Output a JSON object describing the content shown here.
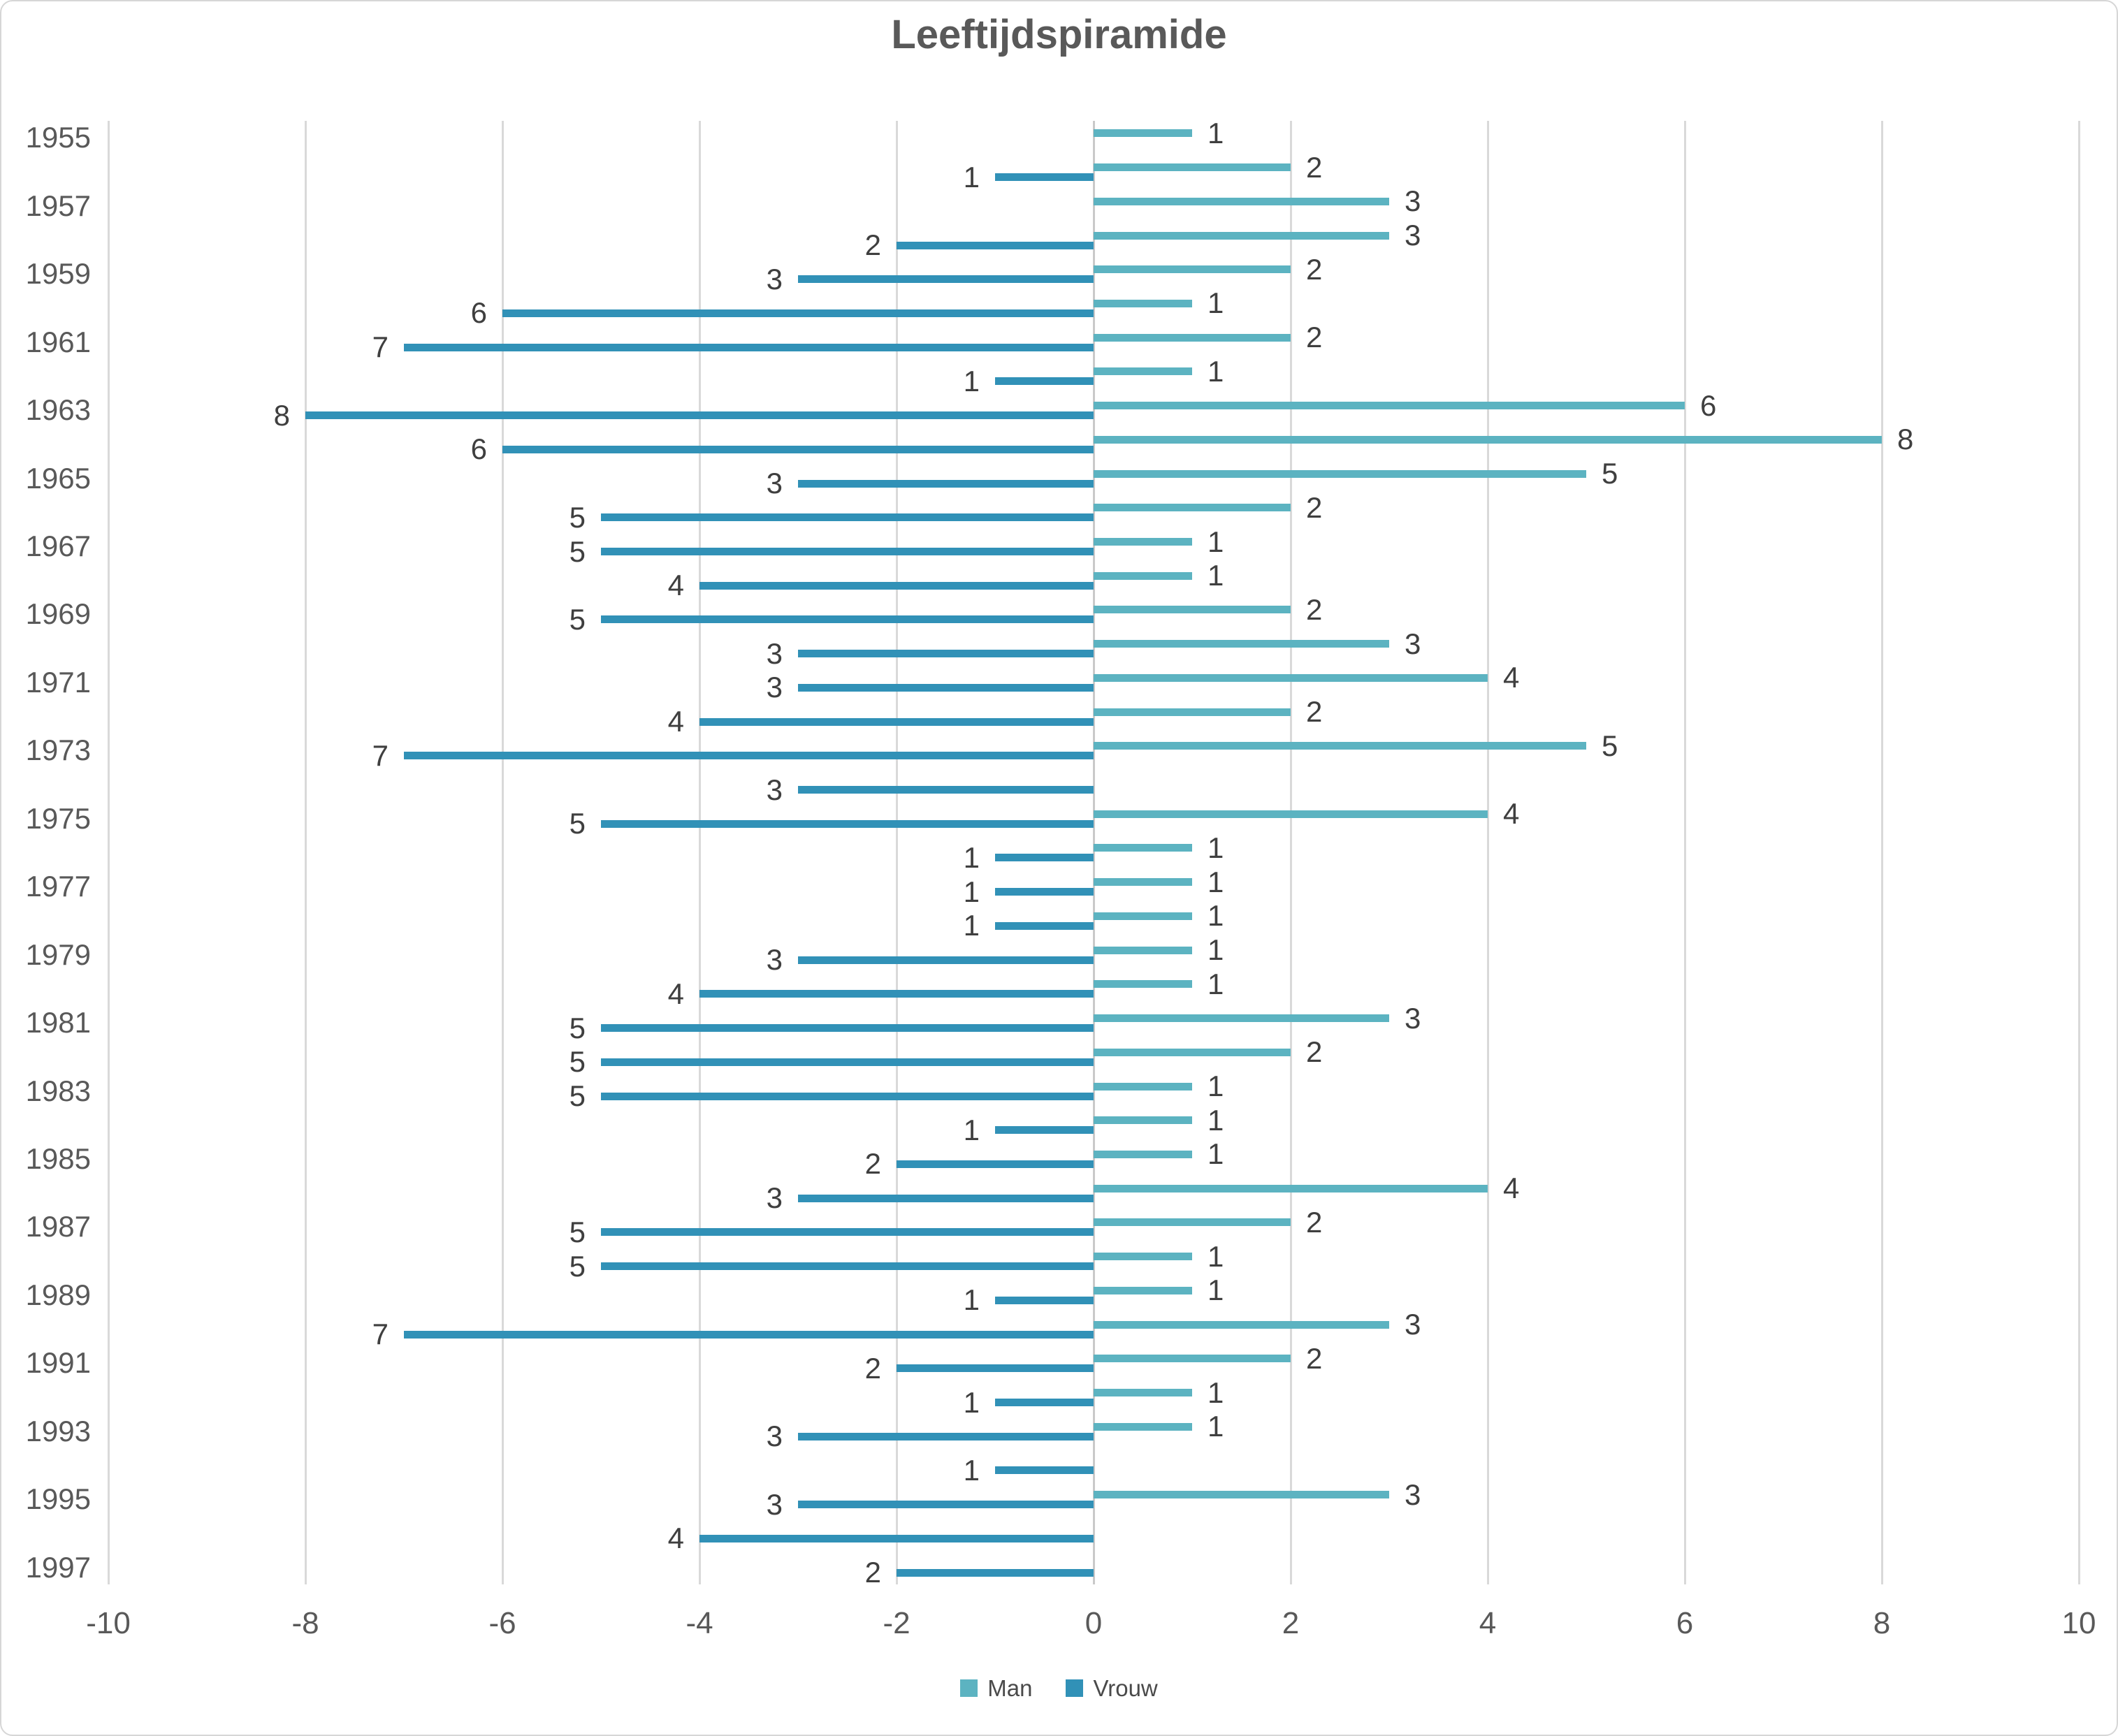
{
  "title": "Leeftijdspiramide",
  "chart_data": {
    "type": "bar",
    "orientation": "horizontal",
    "subtype": "population-pyramid",
    "title": "Leeftijdspiramide",
    "categories": [
      "1955",
      "1956",
      "1957",
      "1958",
      "1959",
      "1960",
      "1961",
      "1962",
      "1963",
      "1964",
      "1965",
      "1966",
      "1967",
      "1968",
      "1969",
      "1970",
      "1971",
      "1972",
      "1973",
      "1974",
      "1975",
      "1976",
      "1977",
      "1978",
      "1979",
      "1980",
      "1981",
      "1982",
      "1983",
      "1984",
      "1985",
      "1986",
      "1987",
      "1988",
      "1989",
      "1990",
      "1991",
      "1992",
      "1993",
      "1994",
      "1995",
      "1996",
      "1997"
    ],
    "series": [
      {
        "name": "Man",
        "color": "#5CB3C1",
        "side": "right",
        "values": [
          1,
          2,
          3,
          3,
          2,
          1,
          2,
          1,
          6,
          8,
          5,
          2,
          1,
          1,
          2,
          3,
          4,
          2,
          5,
          0,
          4,
          1,
          1,
          1,
          1,
          1,
          3,
          2,
          1,
          1,
          1,
          4,
          2,
          1,
          1,
          3,
          2,
          1,
          1,
          0,
          3,
          0,
          0
        ]
      },
      {
        "name": "Vrouw",
        "color": "#3191B7",
        "side": "left",
        "values": [
          0,
          -1,
          0,
          -2,
          -3,
          -6,
          -7,
          -1,
          -8,
          -6,
          -3,
          -5,
          -5,
          -4,
          -5,
          -3,
          -3,
          -4,
          -7,
          -3,
          -5,
          -1,
          -1,
          -1,
          -3,
          -4,
          -5,
          -5,
          -5,
          -1,
          -2,
          -3,
          -5,
          -5,
          -1,
          -7,
          -2,
          -1,
          -3,
          -1,
          -3,
          -4,
          -2
        ]
      }
    ],
    "xlim": [
      -10,
      10
    ],
    "x_tick_values": [
      -10,
      -8,
      -6,
      -4,
      -2,
      0,
      2,
      4,
      6,
      8,
      10
    ],
    "x_tick_labels": [
      "-10",
      "-8",
      "-6",
      "-4",
      "-2",
      "0",
      "2",
      "4",
      "6",
      "8",
      "10"
    ],
    "y_tick_labels": [
      "1955",
      "1957",
      "1959",
      "1961",
      "1963",
      "1965",
      "1967",
      "1969",
      "1971",
      "1973",
      "1975",
      "1977",
      "1979",
      "1981",
      "1983",
      "1985",
      "1987",
      "1989",
      "1991",
      "1993",
      "1995",
      "1997"
    ],
    "grid": true,
    "legend_position": "bottom",
    "data_labels": "absolute value shown at outer end of every non-zero bar"
  },
  "legend": {
    "items": [
      {
        "label": "Man",
        "color": "#5CB3C1"
      },
      {
        "label": "Vrouw",
        "color": "#3191B7"
      }
    ]
  },
  "colors": {
    "man": "#5CB3C1",
    "vrouw": "#3191B7",
    "gridline": "#D9D9D9",
    "zero_line": "#C9C9C9",
    "axis_text": "#595959",
    "data_label_text": "#3F3F3F",
    "title_text": "#595959",
    "background": "#FFFFFF",
    "border": "#D6D6D6"
  }
}
